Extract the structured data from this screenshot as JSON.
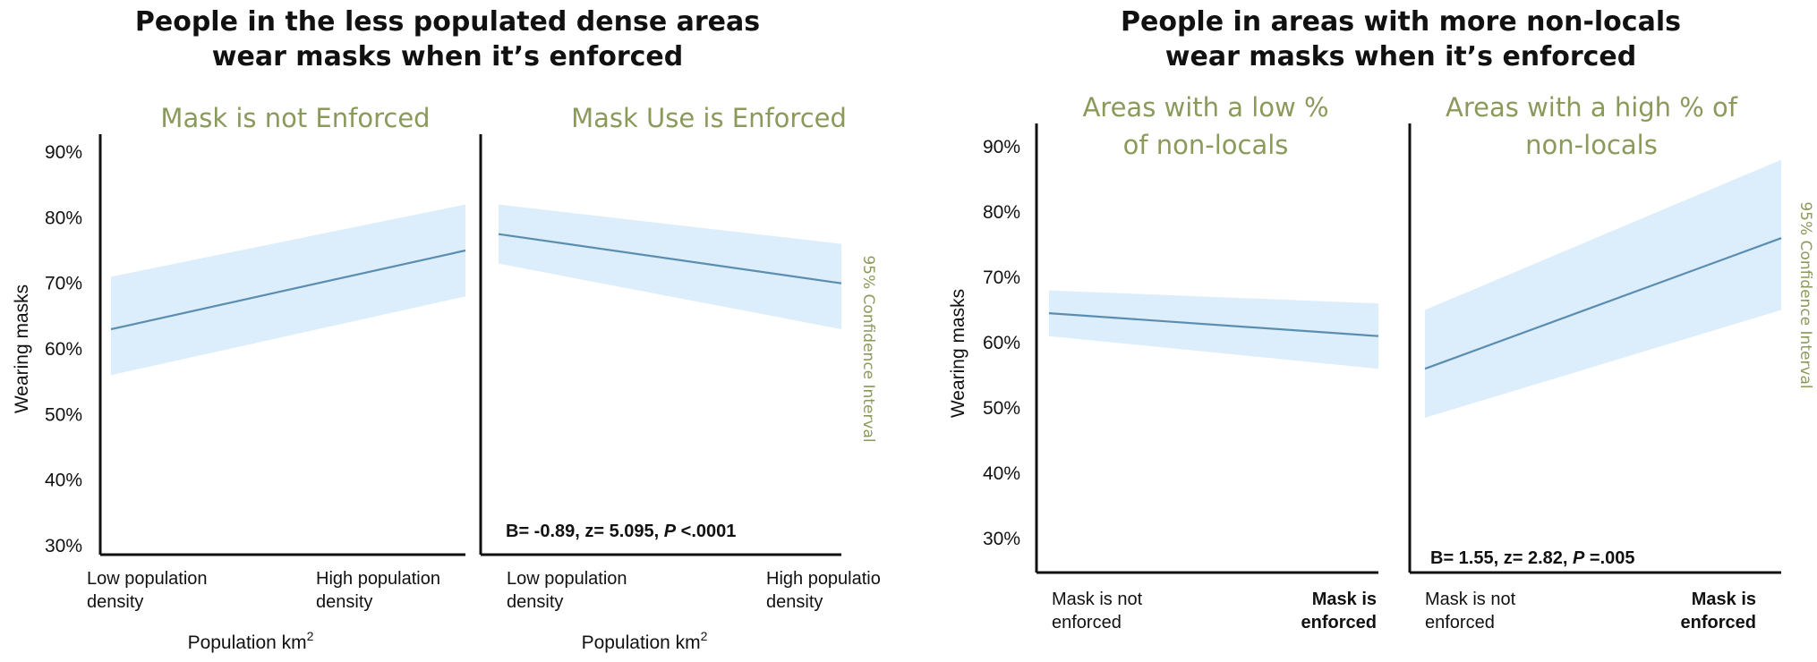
{
  "colors": {
    "line": "#5b8db0",
    "band": "#dcedfb",
    "panel_title": "#8a9a5b",
    "axis": "#111111"
  },
  "chart_data": [
    {
      "type": "line",
      "title": "People in the less populated dense areas wear masks when it’s enforced",
      "title_lines": [
        "People in the less populated dense areas",
        "wear masks when it’s enforced"
      ],
      "ylabel": "Wearing masks",
      "ylim": [
        30,
        90
      ],
      "yticks": [
        {
          "value": 30,
          "label": "30%"
        },
        {
          "value": 40,
          "label": "40%"
        },
        {
          "value": 50,
          "label": "50%"
        },
        {
          "value": 60,
          "label": "60%"
        },
        {
          "value": 70,
          "label": "70%"
        },
        {
          "value": 80,
          "label": "80%"
        },
        {
          "value": 90,
          "label": "90%"
        }
      ],
      "band_label": "95% Confidence Interval",
      "xlabel_main": "Population km",
      "xlabel_sup": "2",
      "panels": [
        {
          "title_lines": [
            "Mask is not Enforced"
          ],
          "x_labels": [
            [
              "Low population",
              "density"
            ],
            [
              "High population",
              "density"
            ]
          ],
          "line": [
            63,
            75
          ],
          "ci_lower": [
            56,
            68
          ],
          "ci_upper": [
            71,
            82
          ]
        },
        {
          "title_lines": [
            "Mask Use is Enforced"
          ],
          "x_labels": [
            [
              "Low population",
              "density"
            ],
            [
              "High populatio",
              "density"
            ]
          ],
          "line": [
            77.5,
            70
          ],
          "ci_lower": [
            73,
            63
          ],
          "ci_upper": [
            82,
            76
          ]
        }
      ],
      "stat": {
        "prefix": "B= -0.89, z= 5.095, ",
        "p": "P",
        "suffix": " <.0001"
      }
    },
    {
      "type": "line",
      "title": "People in areas with more non-locals wear masks when it’s enforced",
      "title_lines": [
        "People in areas with more non-locals",
        "wear masks when it’s enforced"
      ],
      "ylabel": "Wearing masks",
      "ylim": [
        25,
        95
      ],
      "yticks": [
        {
          "value": 30,
          "label": "30%"
        },
        {
          "value": 40,
          "label": "40%"
        },
        {
          "value": 50,
          "label": "50%"
        },
        {
          "value": 60,
          "label": "60%"
        },
        {
          "value": 70,
          "label": "70%"
        },
        {
          "value": 80,
          "label": "80%"
        },
        {
          "value": 90,
          "label": "90%"
        }
      ],
      "band_label": "95% Confidence Interval",
      "panels": [
        {
          "title_lines": [
            "Areas with a low %",
            "of non-locals"
          ],
          "x_labels": [
            [
              "Mask is not",
              "enforced"
            ],
            [
              "Mask is",
              "enforced"
            ]
          ],
          "x_bold": [
            false,
            true
          ],
          "line": [
            64.5,
            61
          ],
          "ci_lower": [
            61,
            56
          ],
          "ci_upper": [
            68,
            66
          ]
        },
        {
          "title_lines": [
            "Areas with a high % of",
            "non-locals"
          ],
          "x_labels": [
            [
              "Mask is not",
              "enforced"
            ],
            [
              "Mask is",
              "enforced"
            ]
          ],
          "x_bold": [
            false,
            true
          ],
          "line": [
            56,
            76
          ],
          "ci_lower": [
            48.5,
            65
          ],
          "ci_upper": [
            65,
            88
          ]
        }
      ],
      "stat": {
        "prefix": "B= 1.55, z= 2.82, ",
        "p": "P",
        "suffix": " =.005"
      }
    }
  ]
}
